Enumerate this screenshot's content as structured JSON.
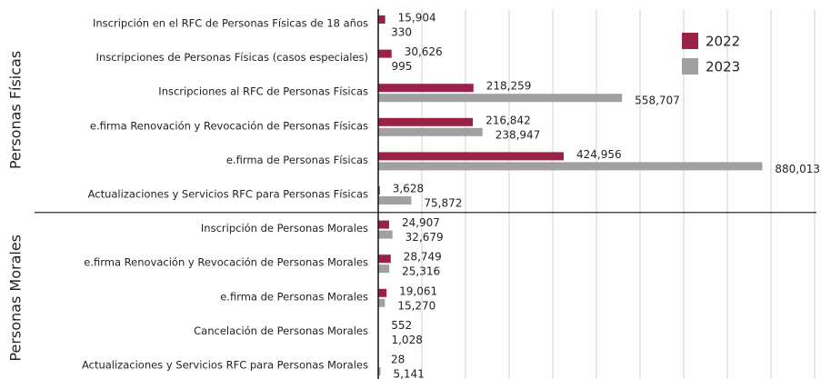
{
  "chart_data": {
    "type": "bar",
    "orientation": "horizontal",
    "groups": [
      {
        "name": "Personas Físicas",
        "categories": [
          "Inscripción en el RFC de Personas Físicas de 18 años",
          "Inscripciones de Personas Físicas (casos especiales)",
          "Inscripciones al RFC de Personas Físicas",
          "e.firma Renovación y Revocación de Personas Físicas",
          "e.firma de Personas Físicas",
          "Actualizaciones y Servicios RFC para Personas Físicas"
        ]
      },
      {
        "name": "Personas Morales",
        "categories": [
          "Inscripción de Personas Morales",
          "e.firma Renovación y Revocación de Personas Morales",
          "e.firma de Personas Morales",
          "Cancelación de Personas Morales",
          "Actualizaciones y Servicios RFC para Personas Morales"
        ]
      }
    ],
    "series": [
      {
        "name": "2022",
        "color": "#9b2247",
        "values": [
          15904,
          30626,
          218259,
          216842,
          424956,
          3628,
          24907,
          28749,
          19061,
          552,
          28
        ],
        "value_labels": [
          "15,904",
          "30,626",
          "218,259",
          "216,842",
          "424,956",
          "3,628",
          "24,907",
          "28,749",
          "19,061",
          "552",
          "28"
        ]
      },
      {
        "name": "2023",
        "color": "#a0a0a0",
        "values": [
          330,
          995,
          558707,
          238947,
          880013,
          75872,
          32679,
          25316,
          15270,
          1028,
          5141
        ],
        "value_labels": [
          "330",
          "995",
          "558,707",
          "238,947",
          "880,013",
          "75,872",
          "32,679",
          "25,316",
          "15,270",
          "1,028",
          "5,141"
        ]
      }
    ],
    "xlim": [
      0,
      1000000
    ],
    "xticks": [
      0,
      100000,
      200000,
      300000,
      400000,
      500000,
      600000,
      700000,
      800000,
      900000,
      1000000
    ],
    "grid": true,
    "legend": "upper right"
  }
}
